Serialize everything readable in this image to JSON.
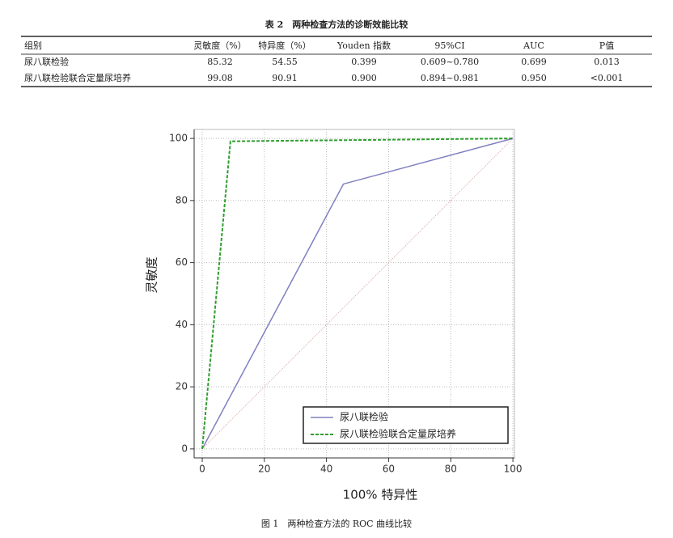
{
  "table": {
    "title": "表 2　两种检查方法的诊断效能比较",
    "header": [
      "组别",
      "灵敏度（%）",
      "特异度（%）",
      "Youden 指数",
      "95%CI",
      "AUC",
      "P值"
    ],
    "rows": [
      [
        "尿八联检验",
        "85.32",
        "54.55",
        "0.399",
        "0.609~0.780",
        "0.699",
        "0.013"
      ],
      [
        "尿八联检验联合定量尿培养",
        "99.08",
        "90.91",
        "0.900",
        "0.894~0.981",
        "0.950",
        "<0.001"
      ]
    ]
  },
  "chart_data": {
    "type": "line",
    "xlabel": "100% 特异性",
    "ylabel": "灵敏度",
    "xlim": [
      -2.6,
      100.5
    ],
    "ylim": [
      -2.9,
      102.9
    ],
    "xticks": [
      0,
      20,
      40,
      60,
      80,
      100
    ],
    "yticks": [
      0,
      20,
      40,
      60,
      80,
      100
    ],
    "grid": true,
    "series": [
      {
        "name": "尿八联检验",
        "color": "#8080c0",
        "dash": false,
        "x": [
          0,
          45.45,
          100
        ],
        "values": [
          0,
          85.32,
          100
        ]
      },
      {
        "name": "尿八联检验联合定量尿培养",
        "color": "#2e9e2e",
        "dash": true,
        "x": [
          0,
          9.09,
          100
        ],
        "values": [
          0,
          99.08,
          100
        ]
      }
    ],
    "reference": {
      "color": "#d9a0a0",
      "x": [
        0,
        100
      ],
      "values": [
        0,
        100
      ]
    }
  },
  "figure_caption": "图 1　两种检查方法的 ROC 曲线比较"
}
